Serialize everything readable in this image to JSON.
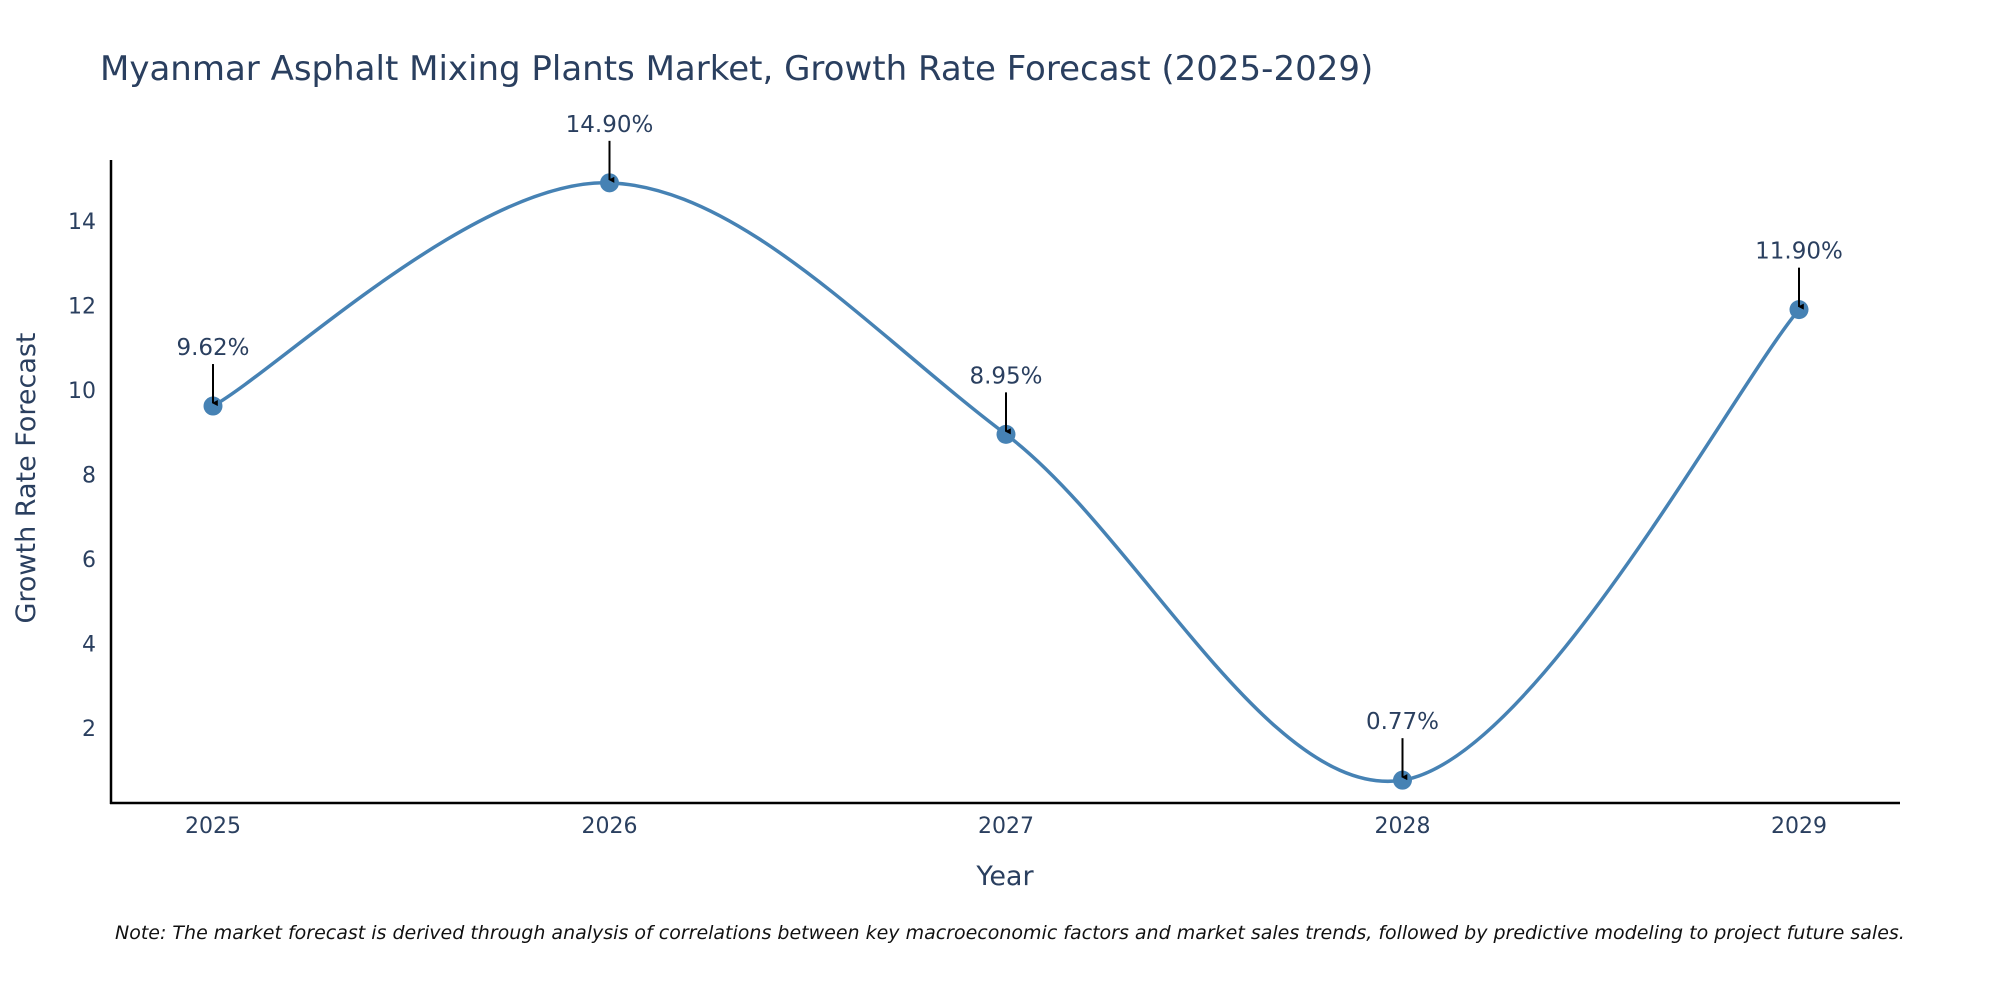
{
  "colors": {
    "line": "#4682b4",
    "marker": "#4682b4",
    "axis": "#000000",
    "text": "#2a3f5f",
    "arrow": "#000000"
  },
  "chart_data": {
    "type": "line",
    "title": "Myanmar Asphalt Mixing Plants Market, Growth Rate Forecast (2025-2029)",
    "xlabel": "Year",
    "ylabel": "Growth Rate Forecast",
    "x": [
      "2025",
      "2026",
      "2027",
      "2028",
      "2029"
    ],
    "series": [
      {
        "name": "Growth Rate Forecast",
        "values": [
          9.62,
          14.9,
          8.95,
          0.77,
          11.9
        ]
      }
    ],
    "data_labels": [
      "9.62%",
      "14.90%",
      "8.95%",
      "0.77%",
      "11.90%"
    ],
    "yticks": [
      2,
      4,
      6,
      8,
      10,
      12,
      14
    ],
    "ylim": [
      0.23,
      15.44
    ],
    "grid": false,
    "line_shape": "spline",
    "note": "Note: The market forecast is derived through analysis of correlations between key macroeconomic factors and market sales trends, followed by predictive modeling to project future sales."
  }
}
